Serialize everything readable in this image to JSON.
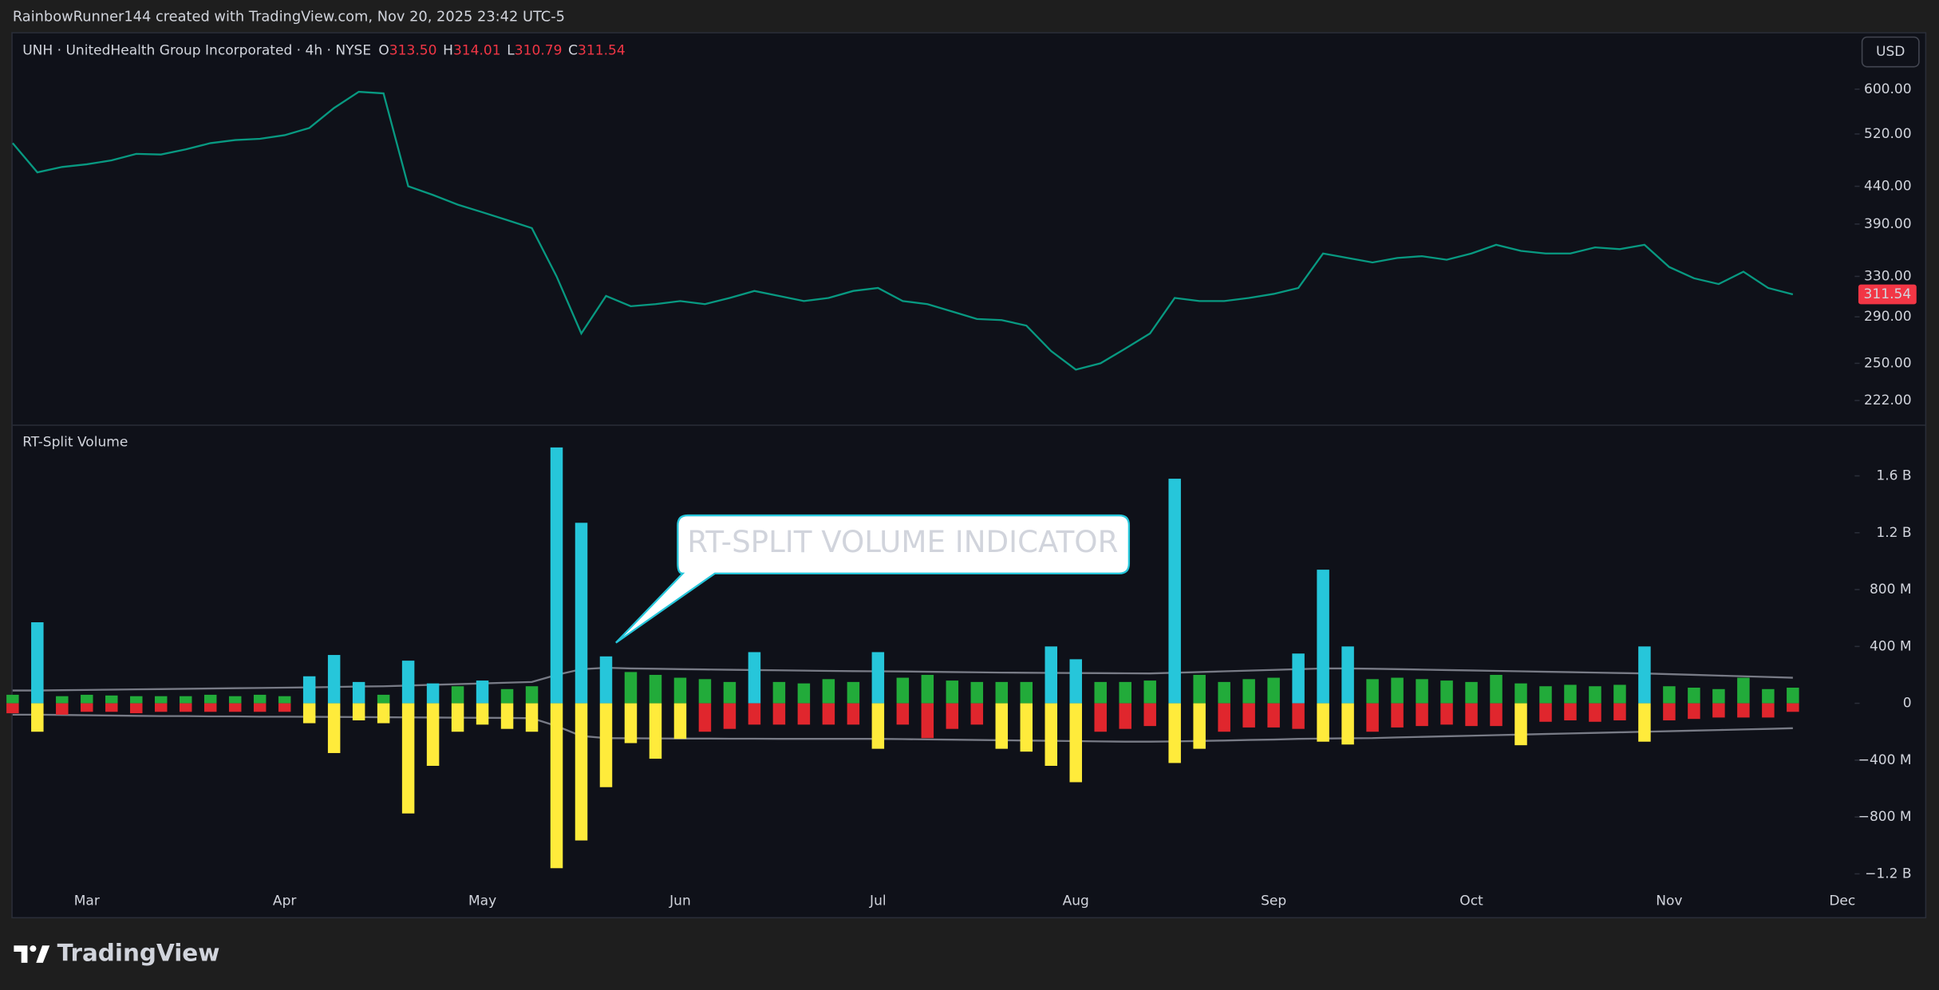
{
  "header": {
    "attribution": "RainbowRunner144 created with TradingView.com, Nov 20, 2025 23:42 UTC-5"
  },
  "chart_data": [
    {
      "type": "line",
      "title": "UNH · UnitedHealth Group Incorporated · 4h · NYSE",
      "ohlc": [
        {
          "label": "O",
          "value": "313.50"
        },
        {
          "label": "H",
          "value": "314.01"
        },
        {
          "label": "L",
          "value": "310.79"
        },
        {
          "label": "C",
          "value": "311.54"
        }
      ],
      "currency": "USD",
      "last_price": 311.54,
      "last_price_color": "#f23645",
      "log_scale": true,
      "series": [
        {
          "color": "#089981",
          "values": [
            505,
            460,
            468,
            472,
            478,
            488,
            487,
            495,
            505,
            510,
            512,
            518,
            530,
            565,
            595,
            592,
            440,
            428,
            415,
            405,
            395,
            385,
            330,
            275,
            310,
            300,
            302,
            305,
            302,
            308,
            315,
            310,
            305,
            308,
            315,
            318,
            305,
            302,
            295,
            288,
            287,
            282,
            260,
            245,
            250,
            262,
            275,
            308,
            305,
            305,
            308,
            312,
            318,
            355,
            350,
            345,
            350,
            352,
            348,
            355,
            365,
            358,
            355,
            355,
            362,
            360,
            365,
            340,
            328,
            322,
            335,
            318,
            311.54,
            null,
            null
          ]
        }
      ],
      "ylim": [
        206,
        717
      ],
      "yticks": [
        {
          "value": 222,
          "label": "222.00"
        },
        {
          "value": 250,
          "label": "250.00"
        },
        {
          "value": 290,
          "label": "290.00"
        },
        {
          "value": 330,
          "label": "330.00"
        },
        {
          "value": 390,
          "label": "390.00"
        },
        {
          "value": 440,
          "label": "440.00"
        },
        {
          "value": 520,
          "label": "520.00"
        },
        {
          "value": 600,
          "label": "600.00"
        }
      ]
    },
    {
      "type": "split_volume",
      "title": "RT-Split Volume",
      "categories": [
        null,
        null,
        null,
        "Mar",
        null,
        null,
        null,
        null,
        null,
        null,
        null,
        "Apr",
        null,
        null,
        null,
        null,
        null,
        null,
        null,
        "May",
        null,
        null,
        null,
        null,
        null,
        null,
        null,
        "Jun",
        null,
        null,
        null,
        null,
        null,
        null,
        null,
        "Jul",
        null,
        null,
        null,
        null,
        null,
        null,
        null,
        "Aug",
        null,
        null,
        null,
        null,
        null,
        null,
        null,
        "Sep",
        null,
        null,
        null,
        null,
        null,
        null,
        null,
        "Oct",
        null,
        null,
        null,
        null,
        null,
        null,
        null,
        "Nov",
        null,
        null,
        null,
        null,
        null,
        null,
        "Dec"
      ],
      "series": [
        {
          "color": "#22ab3a",
          "highlight_color": "#26c6da",
          "values": [
            60000000,
            570000000,
            50000000,
            60000000,
            55000000,
            50000000,
            50000000,
            50000000,
            60000000,
            50000000,
            60000000,
            50000000,
            190000000,
            340000000,
            150000000,
            60000000,
            300000000,
            140000000,
            120000000,
            160000000,
            100000000,
            120000000,
            1800000000,
            1270000000,
            330000000,
            220000000,
            200000000,
            180000000,
            170000000,
            150000000,
            360000000,
            150000000,
            140000000,
            170000000,
            150000000,
            360000000,
            180000000,
            200000000,
            160000000,
            150000000,
            150000000,
            150000000,
            400000000,
            310000000,
            150000000,
            150000000,
            160000000,
            1580000000,
            200000000,
            150000000,
            170000000,
            180000000,
            350000000,
            940000000,
            400000000,
            170000000,
            180000000,
            170000000,
            160000000,
            150000000,
            200000000,
            140000000,
            120000000,
            130000000,
            120000000,
            130000000,
            400000000,
            120000000,
            110000000,
            100000000,
            180000000,
            100000000,
            110000000,
            null,
            null
          ]
        },
        {
          "color": "#e0262d",
          "highlight_color": "#ffeb3b",
          "values": [
            -70000000,
            -200000000,
            -80000000,
            -60000000,
            -60000000,
            -70000000,
            -60000000,
            -60000000,
            -60000000,
            -60000000,
            -60000000,
            -60000000,
            -140000000,
            -350000000,
            -120000000,
            -140000000,
            -775000000,
            -440000000,
            -200000000,
            -150000000,
            -180000000,
            -200000000,
            -1160000000,
            -965000000,
            -590000000,
            -280000000,
            -390000000,
            -250000000,
            -200000000,
            -180000000,
            -150000000,
            -150000000,
            -150000000,
            -150000000,
            -150000000,
            -320000000,
            -150000000,
            -245000000,
            -180000000,
            -150000000,
            -320000000,
            -340000000,
            -440000000,
            -555000000,
            -200000000,
            -180000000,
            -160000000,
            -420000000,
            -320000000,
            -200000000,
            -170000000,
            -170000000,
            -180000000,
            -270000000,
            -290000000,
            -200000000,
            -170000000,
            -160000000,
            -150000000,
            -160000000,
            -160000000,
            -295000000,
            -130000000,
            -120000000,
            -130000000,
            -120000000,
            -270000000,
            -120000000,
            -110000000,
            -100000000,
            -100000000,
            -100000000,
            -60000000,
            null,
            null
          ]
        },
        {
          "color": "#787b86",
          "values": [
            90000000,
            90000000,
            92000000,
            94000000,
            96000000,
            98000000,
            100000000,
            102000000,
            104000000,
            106000000,
            108000000,
            110000000,
            112000000,
            115000000,
            118000000,
            120000000,
            125000000,
            130000000,
            135000000,
            140000000,
            145000000,
            150000000,
            200000000,
            240000000,
            250000000,
            245000000,
            243000000,
            240000000,
            238000000,
            236000000,
            234000000,
            232000000,
            230000000,
            228000000,
            226000000,
            225000000,
            224000000,
            222000000,
            220000000,
            218000000,
            216000000,
            215000000,
            214000000,
            213000000,
            212000000,
            211000000,
            210000000,
            215000000,
            220000000,
            225000000,
            230000000,
            235000000,
            240000000,
            245000000,
            245000000,
            243000000,
            240000000,
            237000000,
            234000000,
            231000000,
            228000000,
            225000000,
            222000000,
            219000000,
            216000000,
            213000000,
            210000000,
            205000000,
            200000000,
            195000000,
            190000000,
            185000000,
            180000000,
            null,
            null
          ]
        },
        {
          "color": "#787b86",
          "values": [
            -80000000,
            -80000000,
            -82000000,
            -84000000,
            -86000000,
            -88000000,
            -90000000,
            -90000000,
            -92000000,
            -92000000,
            -94000000,
            -94000000,
            -95000000,
            -96000000,
            -97000000,
            -98000000,
            -99000000,
            -100000000,
            -101000000,
            -102000000,
            -103000000,
            -105000000,
            -160000000,
            -230000000,
            -245000000,
            -246000000,
            -247000000,
            -248000000,
            -248000000,
            -249000000,
            -249000000,
            -250000000,
            -250000000,
            -250000000,
            -250000000,
            -250000000,
            -252000000,
            -254000000,
            -256000000,
            -258000000,
            -260000000,
            -262000000,
            -264000000,
            -266000000,
            -268000000,
            -270000000,
            -270000000,
            -268000000,
            -265000000,
            -262000000,
            -258000000,
            -255000000,
            -250000000,
            -248000000,
            -246000000,
            -245000000,
            -240000000,
            -236000000,
            -232000000,
            -228000000,
            -224000000,
            -220000000,
            -216000000,
            -212000000,
            -208000000,
            -204000000,
            -200000000,
            -196000000,
            -192000000,
            -188000000,
            -184000000,
            -180000000,
            -175000000,
            null,
            null
          ]
        }
      ],
      "ylim": [
        -1504000000,
        1948000000
      ],
      "yticks": [
        {
          "value": 1600000000,
          "label": "1.6 B"
        },
        {
          "value": 1200000000,
          "label": "1.2 B"
        },
        {
          "value": 800000000,
          "label": "800 M"
        },
        {
          "value": 400000000,
          "label": "400 M"
        },
        0,
        {
          "value": -400000000,
          "label": "−400 M"
        },
        {
          "value": -800000000,
          "label": "−800 M"
        },
        {
          "value": -1200000000,
          "label": "−1.2 B"
        }
      ]
    }
  ],
  "callout": "RT-SPLIT VOLUME INDICATOR",
  "footer": {
    "brand": "TradingView"
  }
}
